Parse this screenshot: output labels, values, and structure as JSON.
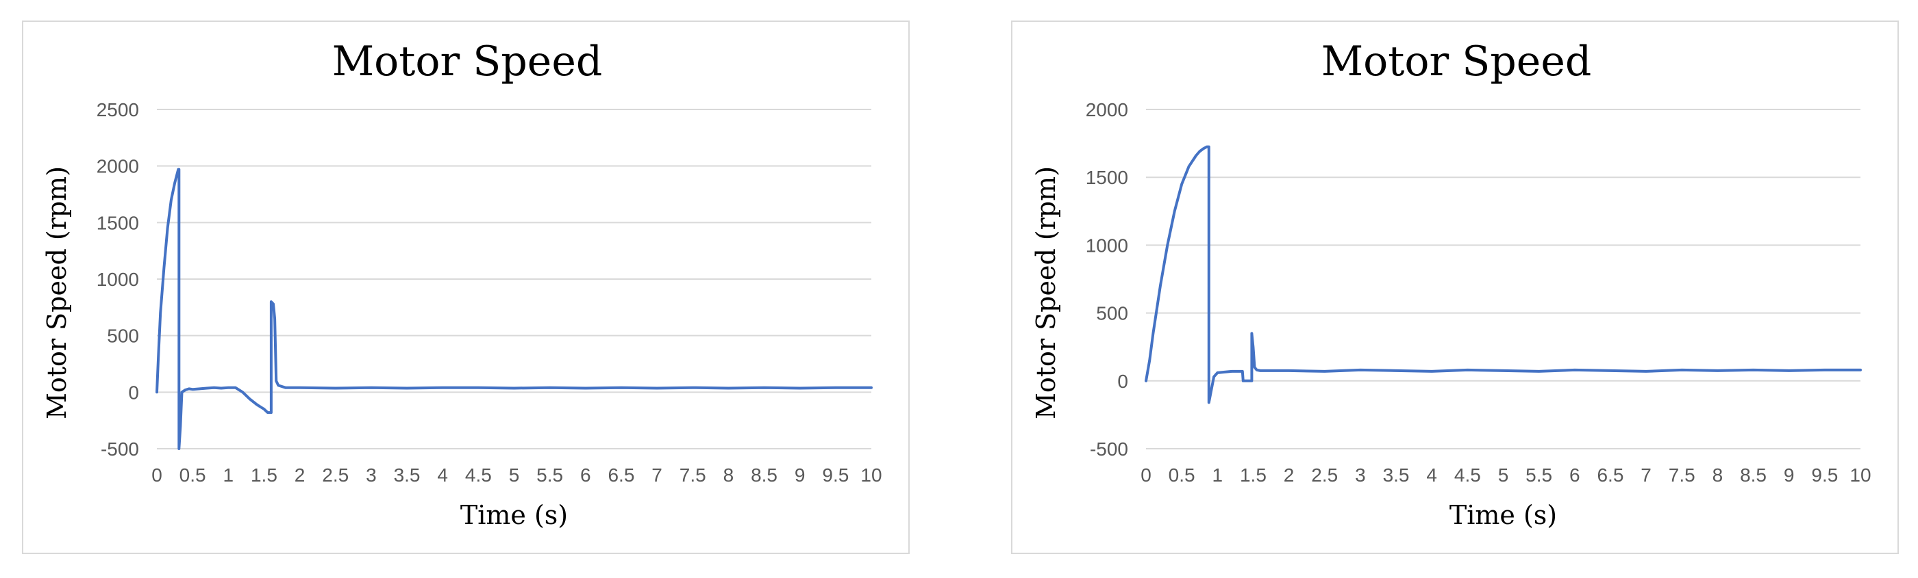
{
  "chart_data": [
    {
      "type": "line",
      "title": "Motor Speed",
      "xlabel": "Time (s)",
      "ylabel": "Motor Speed (rpm)",
      "xlim": [
        0,
        10
      ],
      "ylim": [
        -500,
        2500
      ],
      "yticks": [
        2500,
        2000,
        1500,
        1000,
        500,
        0,
        -500
      ],
      "xticks": [
        "0",
        "0.5",
        "1",
        "1.5",
        "2",
        "2.5",
        "3",
        "3.5",
        "4",
        "4.5",
        "5",
        "5.5",
        "6",
        "6.5",
        "7",
        "7.5",
        "8",
        "8.5",
        "9",
        "9.5",
        "10"
      ],
      "grid": true,
      "line_color": "#4472C4",
      "series": [
        {
          "x": [
            0,
            0.02,
            0.05,
            0.1,
            0.15,
            0.2,
            0.25,
            0.3,
            0.31,
            0.31,
            0.33,
            0.35,
            0.4,
            0.45,
            0.5,
            0.6,
            0.7,
            0.8,
            0.9,
            1.0,
            1.1,
            1.2,
            1.3,
            1.4,
            1.5,
            1.55,
            1.6,
            1.6,
            1.63,
            1.65,
            1.67,
            1.7,
            1.8,
            2,
            2.5,
            3,
            3.5,
            4,
            4.5,
            5,
            5.5,
            6,
            6.5,
            7,
            7.5,
            8,
            8.5,
            9,
            9.5,
            10
          ],
          "y": [
            0,
            300,
            700,
            1100,
            1450,
            1700,
            1850,
            1970,
            1970,
            -500,
            -300,
            0,
            20,
            30,
            25,
            30,
            35,
            40,
            35,
            40,
            40,
            0,
            -60,
            -110,
            -150,
            -180,
            -180,
            800,
            780,
            650,
            100,
            60,
            40,
            40,
            35,
            40,
            35,
            40,
            40,
            35,
            40,
            35,
            40,
            35,
            40,
            35,
            40,
            35,
            40,
            40
          ]
        }
      ]
    },
    {
      "type": "line",
      "title": "Motor Speed",
      "xlabel": "Time (s)",
      "ylabel": "Motor Speed (rpm)",
      "xlim": [
        0,
        10
      ],
      "ylim": [
        -500,
        2000
      ],
      "yticks": [
        2000,
        1500,
        1000,
        500,
        0,
        -500
      ],
      "xticks": [
        "0",
        "0.5",
        "1",
        "1.5",
        "2",
        "2.5",
        "3",
        "3.5",
        "4",
        "4.5",
        "5",
        "5.5",
        "6",
        "6.5",
        "7",
        "7.5",
        "8",
        "8.5",
        "9",
        "9.5",
        "10"
      ],
      "grid": true,
      "line_color": "#4472C4",
      "series": [
        {
          "x": [
            0,
            0.05,
            0.1,
            0.2,
            0.3,
            0.4,
            0.5,
            0.6,
            0.7,
            0.75,
            0.8,
            0.85,
            0.88,
            0.88,
            0.92,
            0.95,
            1.0,
            1.1,
            1.2,
            1.3,
            1.35,
            1.36,
            1.45,
            1.48,
            1.48,
            1.5,
            1.52,
            1.55,
            1.6,
            2,
            2.5,
            3,
            3.5,
            4,
            4.5,
            5,
            5.5,
            6,
            6.5,
            7,
            7.5,
            8,
            8.5,
            9,
            9.5,
            10
          ],
          "y": [
            0,
            150,
            350,
            700,
            1000,
            1250,
            1450,
            1580,
            1660,
            1690,
            1710,
            1725,
            1725,
            -160,
            -50,
            30,
            60,
            65,
            70,
            70,
            70,
            0,
            0,
            0,
            350,
            250,
            100,
            80,
            75,
            75,
            70,
            80,
            75,
            70,
            80,
            75,
            70,
            80,
            75,
            70,
            80,
            75,
            80,
            75,
            80,
            80
          ]
        }
      ]
    }
  ]
}
